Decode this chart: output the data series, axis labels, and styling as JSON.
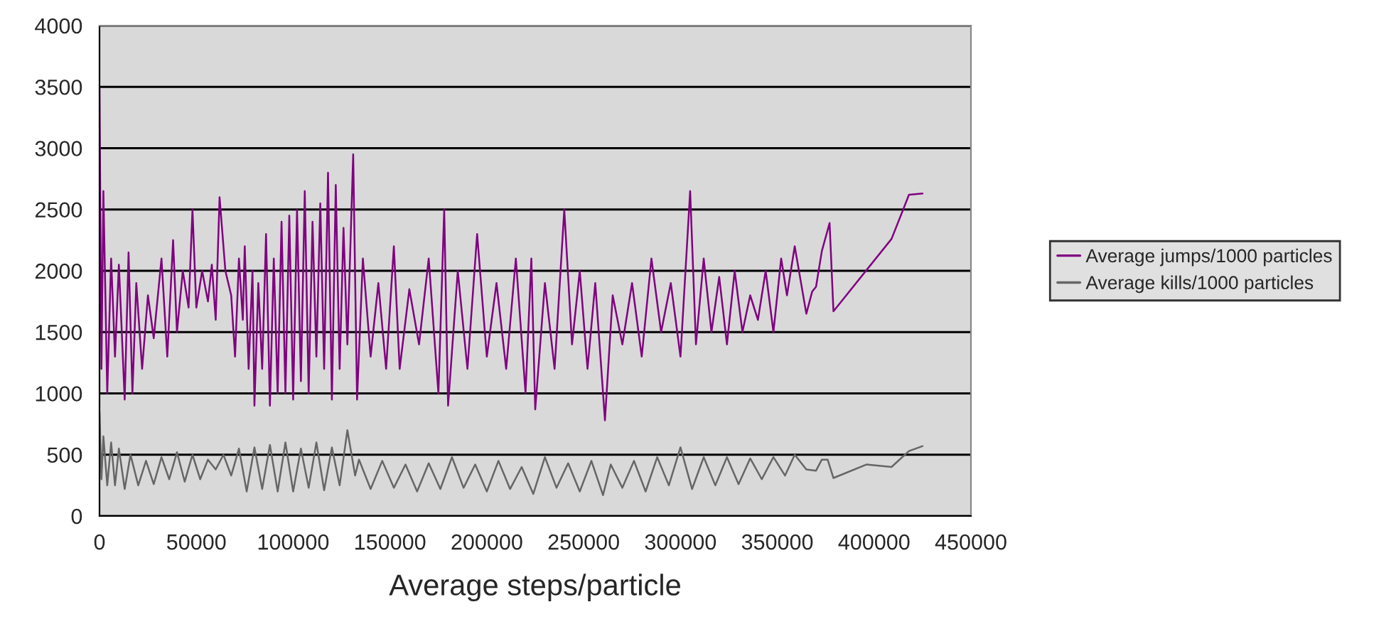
{
  "chart_data": {
    "type": "line",
    "xlabel": "Average steps/particle",
    "xlim": [
      0,
      450000
    ],
    "xticks": [
      0,
      50000,
      100000,
      150000,
      200000,
      250000,
      300000,
      350000,
      400000,
      450000
    ],
    "ylim": [
      0,
      4000
    ],
    "yticks": [
      0,
      500,
      1000,
      1500,
      2000,
      2500,
      3000,
      3500,
      4000
    ],
    "grid": "y",
    "legend": "right",
    "marker": "none",
    "line_style": "solid",
    "series": [
      {
        "name": "Average jumps/1000 particles",
        "color": "#800080",
        "x": [
          0,
          1000,
          2000,
          4000,
          6000,
          8000,
          10000,
          13000,
          15000,
          17000,
          19000,
          22000,
          25000,
          28000,
          32000,
          35000,
          38000,
          40000,
          43000,
          46000,
          48000,
          50000,
          53000,
          56000,
          58000,
          60000,
          62000,
          65000,
          68000,
          70000,
          72000,
          74000,
          75000,
          77000,
          79000,
          80000,
          82000,
          84000,
          86000,
          88000,
          90000,
          92000,
          94000,
          96000,
          98000,
          100000,
          102000,
          104000,
          106000,
          108000,
          110000,
          112000,
          114000,
          116000,
          118000,
          120000,
          122000,
          124000,
          126000,
          128000,
          131000,
          133000,
          136000,
          140000,
          144000,
          148000,
          152000,
          155000,
          160000,
          165000,
          170000,
          175000,
          178000,
          180000,
          185000,
          190000,
          195000,
          200000,
          205000,
          210000,
          215000,
          220000,
          223000,
          225000,
          230000,
          235000,
          240000,
          244000,
          248000,
          252000,
          256000,
          261000,
          265000,
          270000,
          275000,
          280000,
          285000,
          290000,
          295000,
          300000,
          305000,
          308000,
          312000,
          316000,
          320000,
          324000,
          328000,
          332000,
          336000,
          340000,
          344000,
          348000,
          352000,
          355000,
          359000,
          365000,
          368000,
          370000,
          373000,
          377000,
          379000,
          409000,
          418000,
          425000
        ],
        "values": [
          3500,
          1200,
          2650,
          1000,
          2100,
          1300,
          2050,
          950,
          2150,
          1000,
          1900,
          1200,
          1800,
          1450,
          2100,
          1300,
          2250,
          1500,
          2000,
          1700,
          2500,
          1700,
          2000,
          1750,
          2050,
          1600,
          2600,
          2000,
          1800,
          1300,
          2100,
          1600,
          2200,
          1200,
          2000,
          900,
          1900,
          1200,
          2300,
          900,
          2100,
          1000,
          2400,
          1000,
          2450,
          950,
          2500,
          1100,
          2650,
          1000,
          2400,
          1300,
          2550,
          1200,
          2800,
          950,
          2700,
          1200,
          2350,
          1400,
          2950,
          950,
          2100,
          1300,
          1900,
          1200,
          2200,
          1200,
          1850,
          1400,
          2100,
          1000,
          2500,
          900,
          2000,
          1200,
          2300,
          1300,
          1900,
          1200,
          2100,
          1000,
          2100,
          870,
          1900,
          1200,
          2500,
          1400,
          2000,
          1200,
          1900,
          780,
          1800,
          1400,
          1900,
          1300,
          2100,
          1500,
          1900,
          1300,
          2650,
          1400,
          2100,
          1500,
          1950,
          1400,
          2000,
          1500,
          1800,
          1600,
          2000,
          1500,
          2100,
          1800,
          2200,
          1650,
          1830,
          1870,
          2160,
          2390,
          1670,
          2260,
          2620,
          2630
        ]
      },
      {
        "name": "Average kills/1000 particles",
        "color": "#666666",
        "x": [
          0,
          1000,
          2000,
          4000,
          6000,
          8000,
          10000,
          13000,
          16000,
          20000,
          24000,
          28000,
          32000,
          36000,
          40000,
          44000,
          48000,
          52000,
          56000,
          60000,
          64000,
          68000,
          72000,
          76000,
          80000,
          84000,
          88000,
          92000,
          96000,
          100000,
          104000,
          108000,
          112000,
          116000,
          120000,
          124000,
          128000,
          132000,
          134000,
          140000,
          146000,
          152000,
          158000,
          164000,
          170000,
          176000,
          182000,
          188000,
          194000,
          200000,
          206000,
          212000,
          218000,
          224000,
          230000,
          236000,
          242000,
          248000,
          254000,
          260000,
          264000,
          270000,
          276000,
          282000,
          288000,
          294000,
          300000,
          306000,
          312000,
          318000,
          324000,
          330000,
          336000,
          342000,
          348000,
          354000,
          359000,
          365000,
          370000,
          373000,
          376000,
          379000,
          396000,
          409000,
          418000,
          425000
        ],
        "values": [
          850,
          300,
          650,
          250,
          600,
          250,
          550,
          220,
          500,
          250,
          450,
          260,
          480,
          300,
          520,
          280,
          500,
          300,
          460,
          380,
          500,
          330,
          550,
          200,
          560,
          220,
          580,
          200,
          600,
          200,
          550,
          230,
          600,
          210,
          560,
          250,
          700,
          330,
          460,
          220,
          450,
          230,
          420,
          200,
          430,
          220,
          480,
          230,
          420,
          200,
          450,
          220,
          400,
          180,
          480,
          230,
          430,
          200,
          450,
          170,
          420,
          230,
          450,
          200,
          480,
          250,
          560,
          220,
          480,
          250,
          480,
          260,
          470,
          300,
          480,
          330,
          500,
          380,
          370,
          460,
          460,
          310,
          420,
          400,
          530,
          570
        ]
      }
    ]
  }
}
